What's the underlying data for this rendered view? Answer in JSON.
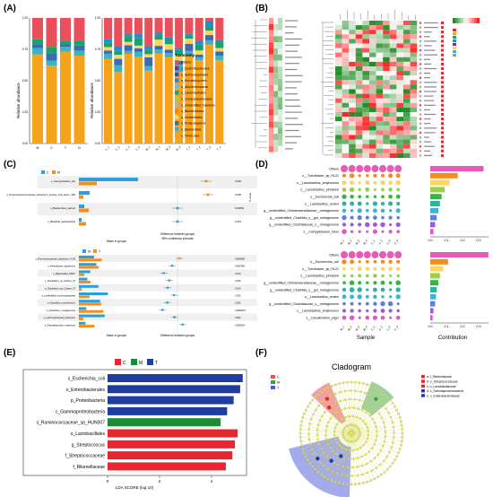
{
  "panels": {
    "A": {
      "letter": "(A)",
      "ylabel": "Relative abundance",
      "legend_title": "Taxonomy",
      "legend": [
        "Others",
        "o_Deferribacterales",
        "o_Actinomycetales",
        "o_Eurotiomycetes",
        "o_Allovibrionaceae",
        "o_Lactobacillales",
        "o_Campylobacterales",
        "o_unidentified_Bacteria",
        "o_Bacteroidales",
        "o_Clostridiales",
        "o_Proteobacteria",
        "o_Bacteroidia",
        "o_Firmicutes"
      ],
      "colors": [
        "#e8505b",
        "#7a2e8c",
        "#3a4fa3",
        "#2b88c9",
        "#5cc3e8",
        "#18a36a",
        "#9fcf4a",
        "#b2b2b2",
        "#ff7f00",
        "#ffd45c",
        "#3d6bb3",
        "#3bb3c3",
        "#f7a21b"
      ],
      "left_categories": [
        "M",
        "C",
        "T",
        "N"
      ],
      "right_categories": [
        "C_1",
        "C_2",
        "C_3",
        "C_4",
        "M_1",
        "M_2",
        "M_3",
        "M_4",
        "T_1",
        "T_2",
        "T_3",
        "T_4"
      ],
      "yticks": [
        "0.00",
        "0.25",
        "0.50",
        "0.75",
        "1.00"
      ]
    },
    "B": {
      "letter": "(B)"
    },
    "C": {
      "letter": "(C)",
      "top_legend": [
        "C",
        "M"
      ],
      "bottom_legend": [
        "M",
        "T"
      ],
      "top_rows": [
        "s_Campylobacter_lari",
        "s_Peptostreptococcaceae_bacterium_canine_oral_taxon_325",
        "s_Bacteroides_sartorii",
        "s_Bilophila_wadsworthia"
      ],
      "top_pvalues": [
        "0.002",
        "0.006",
        "0.00052",
        "0.015"
      ],
      "top_x_title": "Mean in groups",
      "top_diff_title": "Difference between groups",
      "ci_title": "95% confidence intervals",
      "bottom_rows": [
        "s_Ruminococcaceae_bacterium_YL45",
        "s_Helicobacter_apodemus",
        "s_Bacteroides_MS57",
        "s_Clostridium_sp_Culture_37",
        "s_Clostridium_sp_Culture_27",
        "s_unidentified_Lachnospiraceae",
        "s_Clostridium_ruminantium",
        "s_Clostridium_metagenome",
        "s_Lachnospiraceae_bacterium",
        "s_Faecalibaculum_rodentium"
      ],
      "bottom_pvalues": [
        "0.000089",
        "0.000785",
        "0.010",
        "0.025",
        "0.014",
        "0.032",
        "0.036",
        "0.0000077",
        "0.004",
        "0.000034"
      ]
    },
    "D": {
      "letter": "(D)",
      "top_rows": [
        "Others",
        "s__Turicibacter_sp_HL21",
        "s__Lactobacillus_amylovorus",
        "s__Lactobacillus_johnsonii",
        "s__Escherichia_coli",
        "s__Ladobacillus_reuteri",
        "g__unidentified_Christensenellaceae__metagenome",
        "g__unidentified_Clostridia_s__gut_metagenome",
        "g__unidentified_Clostridiaceae_s__metagenome",
        "s__Campylobacter_felus"
      ],
      "bottom_rows": [
        "Others",
        "s__Escherichia_coli",
        "s__Turicibacter_sp_HL21",
        "s__Lactobacillus_johnsonii",
        "g__unidentified_Christensenellaceae__metagenome",
        "g__unidentified_Clostridia_s__gut_metagenome",
        "s__Ladobacillus_reuteri",
        "g__unidentified_Clostridiaceae_s__metagenome",
        "s__Lactobacillus_amylovorus",
        "s__Desulfovibrio_piger"
      ],
      "samples": [
        "M_1",
        "M_2",
        "M_3",
        "M_4",
        "C_1",
        "C_2",
        "C_3",
        "C_4"
      ],
      "xlabel_sample": "Sample",
      "xlabel_contribution": "Contribution",
      "contribution_ticks": [
        "0.0",
        "0.1",
        "0.2",
        "0.3"
      ],
      "top_contribution": [
        0.33,
        0.17,
        0.12,
        0.09,
        0.07,
        0.06,
        0.05,
        0.04,
        0.03,
        0.02
      ],
      "bottom_contribution": [
        0.36,
        0.11,
        0.08,
        0.06,
        0.05,
        0.04,
        0.035,
        0.03,
        0.02,
        0.015
      ]
    },
    "E": {
      "letter": "(E)",
      "legend": [
        {
          "name": "C",
          "color": "#e8262f"
        },
        {
          "name": "M",
          "color": "#1a8c36"
        },
        {
          "name": "T",
          "color": "#1f3d9e"
        }
      ],
      "xlabel": "LDA SCORE (log 10)",
      "xticks": [
        "0",
        "2",
        "4"
      ]
    },
    "F": {
      "letter": "(F)",
      "title": "Cladogram",
      "legend_groups": [
        "C",
        "M",
        "T"
      ],
      "legend_colors": [
        "#e8505b",
        "#3aa34a",
        "#4a5bd4"
      ],
      "legend_items": [
        "a: f_Rikenellaceae",
        "b: o_Streptococcaceae",
        "c: o_Lactobacillaceae",
        "d: c_Gammaproteobacteria",
        "e: o_Enterobacteriaceae"
      ],
      "legend_item_colors": [
        "#e8262f",
        "#e8262f",
        "#e8262f",
        "#1f3d9e",
        "#1f3d9e"
      ]
    }
  },
  "chart_data": [
    {
      "type": "bar",
      "title": "",
      "xlabel": "",
      "ylabel": "Relative abundance",
      "ylim": [
        0,
        1
      ],
      "note": "panel A stacked relative abundance",
      "categories": [
        "M",
        "C",
        "T",
        "N"
      ],
      "series": [
        {
          "name": "o_Firmicutes",
          "values": [
            0.71,
            0.62,
            0.73,
            0.7
          ]
        },
        {
          "name": "o_Bacteroidia",
          "values": [
            0.05,
            0.04,
            0.04,
            0.04
          ]
        },
        {
          "name": "o_Proteobacteria",
          "values": [
            0.03,
            0.06,
            0.02,
            0.04
          ]
        },
        {
          "name": "o_Lactobacillales",
          "values": [
            0.04,
            0.05,
            0.03,
            0.04
          ]
        },
        {
          "name": "Others",
          "values": [
            0.17,
            0.23,
            0.18,
            0.18
          ]
        }
      ]
    },
    {
      "type": "bar",
      "title": "",
      "xlabel": "LDA SCORE (log 10)",
      "ylabel": "",
      "xlim": [
        0,
        5.5
      ],
      "categories": [
        "s_Escherichia_coli",
        "o_Enterobacterales",
        "p_Proteobacteria",
        "c_Gammaproteobacteria",
        "s_Ruminococcaceae_sp_HUN007",
        "o_Lactobacillales",
        "g_Streptococcus",
        "f_Streptococcaceae",
        "f_Rikenellaceae"
      ],
      "values": [
        5.2,
        5.1,
        4.85,
        4.6,
        4.35,
        5.0,
        4.9,
        4.8,
        4.55
      ],
      "groups": [
        "T",
        "T",
        "T",
        "T",
        "M",
        "C",
        "C",
        "C",
        "C"
      ]
    }
  ]
}
